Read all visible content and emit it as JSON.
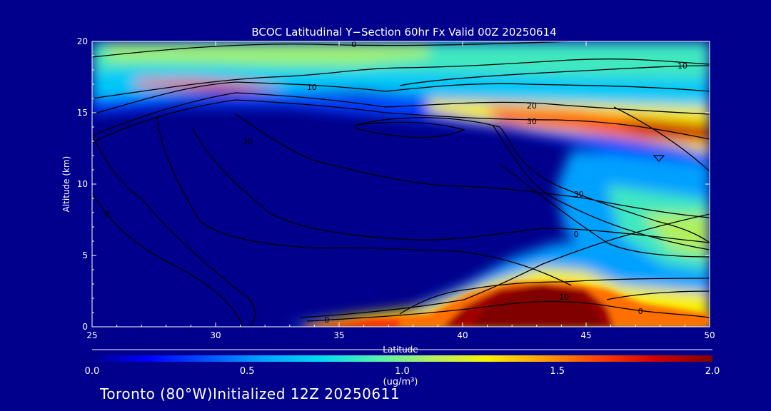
{
  "colors": {
    "background": "#00008c",
    "axis": "#ffffff",
    "contour": "#000000",
    "colormap": [
      "#00008c",
      "#0000ff",
      "#0050ff",
      "#00a0ff",
      "#00d8f0",
      "#50f0b0",
      "#b0f060",
      "#f8f000",
      "#ffa000",
      "#ff4000",
      "#d00000",
      "#800000"
    ]
  },
  "chart_data": {
    "type": "heatmap",
    "title": "BCOC Latitudinal Y−Section 60hr  Fx Valid 00Z 20250614",
    "xlabel": "Latitude",
    "ylabel": "Altitude (km)",
    "xlim": [
      25,
      50
    ],
    "ylim": [
      0,
      20
    ],
    "x_ticks": [
      "25",
      "30",
      "35",
      "40",
      "45",
      "50"
    ],
    "y_ticks": [
      "0",
      "5",
      "10",
      "15",
      "20"
    ],
    "x_tick_values": [
      25,
      30,
      35,
      40,
      45,
      50
    ],
    "y_tick_values": [
      0,
      5,
      10,
      15,
      20
    ],
    "colorbar": {
      "range": [
        0.0,
        2.0
      ],
      "ticks": [
        "0.0",
        "0.5",
        "1.0",
        "1.5",
        "2.0"
      ],
      "tick_values": [
        0.0,
        0.5,
        1.0,
        1.5,
        2.0
      ],
      "unit_label": "(ug/m³)"
    },
    "concentration_features": [
      {
        "lat_range": [
          25,
          50
        ],
        "alt_range": [
          16.5,
          20
        ],
        "value": 0.9
      },
      {
        "lat_range": [
          27,
          36
        ],
        "alt_range": [
          16.5,
          17.5
        ],
        "value": 1.8
      },
      {
        "lat_range": [
          42,
          50
        ],
        "alt_range": [
          13,
          15.5
        ],
        "value": 1.8
      },
      {
        "lat_range": [
          37,
          50
        ],
        "alt_range": [
          13,
          16
        ],
        "value": 1.2
      },
      {
        "lat_range": [
          33,
          50
        ],
        "alt_range": [
          0,
          2
        ],
        "value": 1.5
      },
      {
        "lat_range": [
          41,
          46
        ],
        "alt_range": [
          0,
          3
        ],
        "value": 2.0
      },
      {
        "lat_range": [
          44,
          50
        ],
        "alt_range": [
          2,
          12
        ],
        "value": 0.8
      }
    ],
    "contour_labels": [
      {
        "text": "0",
        "lat": 35.6,
        "alt": 19.8
      },
      {
        "text": "10",
        "lat": 48.9,
        "alt": 18.3
      },
      {
        "text": "10",
        "lat": 33.9,
        "alt": 16.8
      },
      {
        "text": "20",
        "lat": 42.8,
        "alt": 15.5
      },
      {
        "text": "30",
        "lat": 42.8,
        "alt": 14.4
      },
      {
        "text": "30",
        "lat": 31.3,
        "alt": 13.0
      },
      {
        "text": "30",
        "lat": 44.7,
        "alt": 9.3
      },
      {
        "text": "0",
        "lat": 25.6,
        "alt": 7.9
      },
      {
        "text": "0",
        "lat": 44.6,
        "alt": 6.5
      },
      {
        "text": "10",
        "lat": 44.1,
        "alt": 2.1
      },
      {
        "text": "0",
        "lat": 47.2,
        "alt": 1.1
      },
      {
        "text": "0",
        "lat": 34.5,
        "alt": 0.5
      }
    ]
  },
  "footer": {
    "location": "Toronto (80°W)",
    "initialized": "Initialized 12Z 20250611"
  }
}
